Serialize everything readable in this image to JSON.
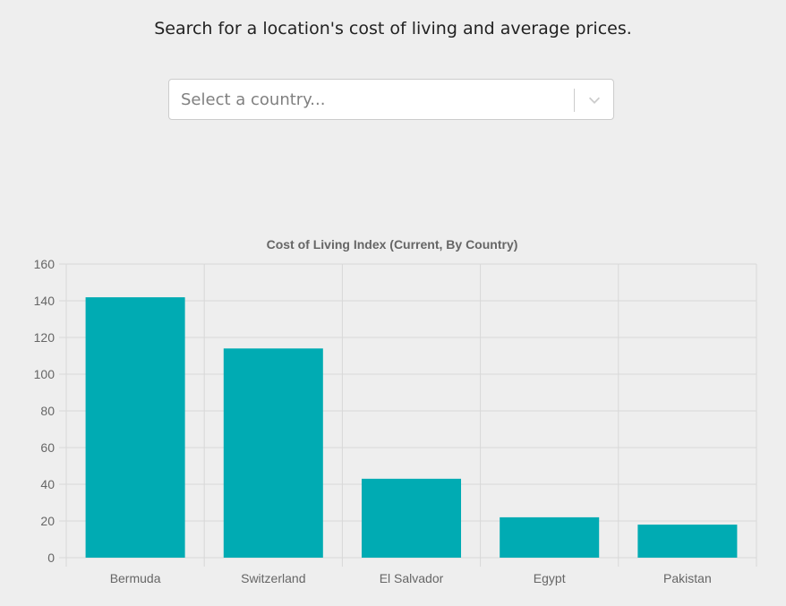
{
  "intro": {
    "text": "Search for a location's cost of living and average prices."
  },
  "country_select": {
    "placeholder": "Select a country...",
    "indicator_icon": "chevron-down-icon"
  },
  "colors": {
    "bar": "#00abb3",
    "grid": "#d8d8d8",
    "axis_text": "#666666"
  },
  "chart_data": {
    "type": "bar",
    "title": "Cost of Living Index (Current, By Country)",
    "categories": [
      "Bermuda",
      "Switzerland",
      "El Salvador",
      "Egypt",
      "Pakistan"
    ],
    "values": [
      141.9,
      114,
      43,
      22,
      18
    ],
    "ylim": [
      0,
      160
    ],
    "yticks": [
      0,
      20,
      40,
      60,
      80,
      100,
      120,
      140,
      160
    ],
    "xlabel": "",
    "ylabel": "",
    "grid": true,
    "legend": "none"
  }
}
